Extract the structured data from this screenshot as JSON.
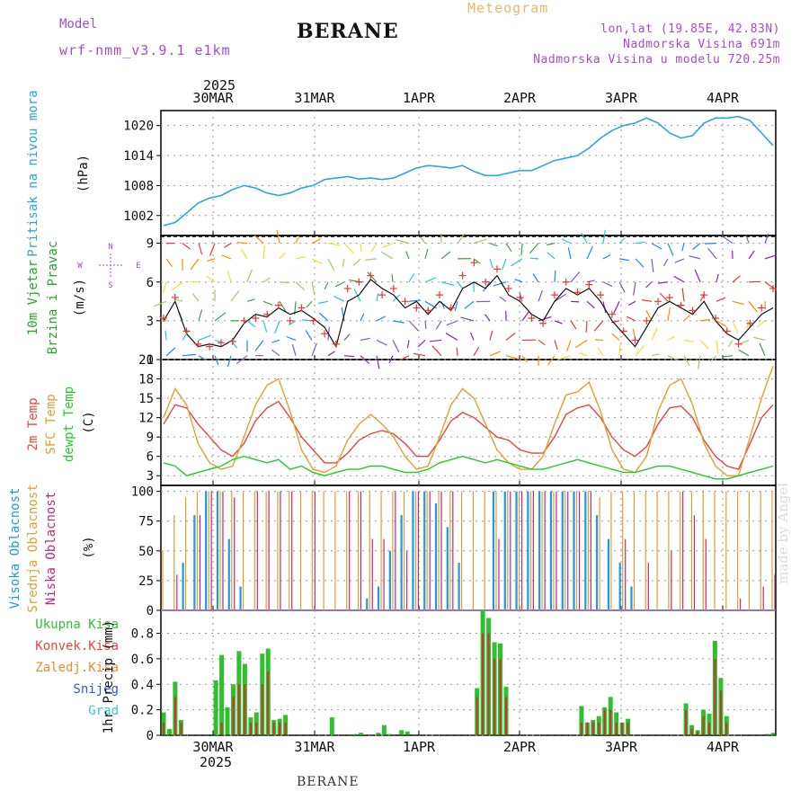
{
  "header": {
    "model_label": "Model",
    "model_value": "wrf-nmm_v3.9.1 e1km",
    "station": "BERANE",
    "meteogram": "Meteogram",
    "lonlat": "lon,lat (19.85E, 42.83N)",
    "altitude": "Nadmorska Visina 691m",
    "model_altitude": "Nadmorska Visina u modelu 720.25m",
    "footer_station": "BERANE",
    "credit": "made by Angel"
  },
  "time_axis": {
    "year": "2025",
    "labels": [
      "30MAR",
      "31MAR",
      "1APR",
      "2APR",
      "3APR",
      "4APR"
    ]
  },
  "colors": {
    "pressure": "#2aa6e0",
    "temp_2m": "#e8453c",
    "temp_sfc": "#e0a030",
    "dewpoint": "#22cc22",
    "cloud_high": "#1e9bd8",
    "cloud_mid": "#e0a030",
    "cloud_low": "#c0287a",
    "precip": "#2fbf2f",
    "precip_conv": "#c0392b",
    "wind_label": "#22aa22",
    "compass": "#a64bd1"
  },
  "chart_data": [
    {
      "type": "line",
      "ylabel_main": "Pritisak na nivou mora",
      "ylabel_unit": "(hPa)",
      "ylim": [
        998,
        1023
      ],
      "ticks": [
        1002,
        1008,
        1014,
        1020
      ],
      "series": [
        {
          "values": [
            1000.0,
            1000.6,
            1002.5,
            1004.5,
            1005.5,
            1006.0,
            1007.2,
            1008.0,
            1007.5,
            1006.5,
            1006.0,
            1006.5,
            1007.5,
            1008.0,
            1009.2,
            1009.5,
            1009.8,
            1009.3,
            1009.5,
            1009.2,
            1009.5,
            1010.5,
            1011.5,
            1012.0,
            1011.8,
            1011.5,
            1012.0,
            1010.8,
            1010.0,
            1010.0,
            1010.5,
            1011.0,
            1011.0,
            1012.0,
            1013.0,
            1013.5,
            1014.0,
            1015.5,
            1017.5,
            1019.0,
            1020.0,
            1020.5,
            1021.5,
            1020.5,
            1018.5,
            1017.5,
            1018.0,
            1020.5,
            1021.5,
            1021.5,
            1021.8,
            1021.0,
            1018.5,
            1016.0
          ]
        }
      ]
    },
    {
      "type": "line",
      "ylabel_main": "10m Vjetar Brzina i Pravac",
      "ylabel_unit": "(m/s)",
      "compass": [
        "N",
        "W",
        "E",
        "S"
      ],
      "ylim": [
        0,
        9.6
      ],
      "ticks": [
        0,
        3,
        6,
        9
      ],
      "series": [
        {
          "values": [
            3.0,
            4.5,
            2.0,
            1.0,
            1.2,
            1.0,
            1.5,
            2.8,
            3.5,
            3.3,
            4.0,
            3.5,
            3.8,
            3.2,
            2.5,
            1.0,
            4.5,
            5.0,
            6.2,
            5.5,
            5.0,
            4.0,
            4.5,
            3.5,
            4.5,
            3.8,
            5.5,
            6.0,
            5.5,
            6.5,
            5.0,
            4.5,
            3.5,
            3.0,
            4.5,
            5.5,
            5.0,
            5.5,
            4.5,
            3.0,
            2.0,
            1.0,
            2.5,
            4.0,
            4.5,
            4.0,
            3.5,
            4.5,
            3.0,
            2.0,
            1.5,
            2.5,
            3.5,
            4.0
          ]
        },
        {
          "values": [
            3.2,
            4.8,
            2.2,
            1.2,
            1.0,
            1.3,
            1.4,
            3.0,
            3.2,
            3.5,
            4.2,
            3.0,
            4.0,
            3.0,
            2.0,
            1.2,
            5.5,
            6.0,
            6.5,
            5.0,
            5.5,
            4.5,
            4.0,
            3.8,
            5.0,
            4.0,
            6.5,
            7.5,
            6.0,
            7.0,
            5.5,
            4.8,
            3.2,
            2.8,
            5.0,
            6.0,
            5.2,
            5.8,
            5.0,
            3.5,
            2.2,
            1.5,
            3.0,
            4.5,
            4.8,
            4.2,
            3.8,
            5.0,
            3.2,
            2.2,
            1.2,
            2.8,
            4.0,
            5.5
          ]
        }
      ]
    },
    {
      "type": "line",
      "ylabel_lines": [
        "2m Temp",
        "SFC Temp",
        "dewpt Temp"
      ],
      "ylabel_unit": "(C)",
      "ylim": [
        1.5,
        21
      ],
      "ticks": [
        3,
        6,
        9,
        12,
        15,
        18,
        21
      ],
      "series": [
        {
          "values": [
            11.0,
            14.0,
            13.5,
            11.0,
            9.0,
            7.0,
            6.0,
            8.0,
            11.5,
            13.5,
            14.5,
            12.0,
            9.0,
            7.0,
            5.0,
            5.0,
            6.5,
            8.5,
            9.5,
            10.0,
            9.5,
            8.0,
            6.0,
            6.0,
            8.5,
            11.5,
            12.8,
            12.0,
            10.5,
            9.0,
            8.5,
            7.0,
            6.5,
            6.5,
            9.0,
            12.5,
            13.5,
            14.0,
            12.0,
            9.0,
            7.0,
            6.0,
            7.5,
            11.0,
            13.5,
            13.8,
            12.0,
            8.5,
            6.0,
            4.5,
            4.0,
            8.0,
            12.0,
            14.0
          ]
        },
        {
          "values": [
            12.0,
            16.5,
            14.0,
            8.0,
            5.0,
            4.0,
            4.5,
            9.0,
            14.0,
            17.0,
            18.0,
            13.0,
            7.0,
            4.0,
            3.5,
            4.5,
            8.5,
            11.0,
            12.5,
            11.0,
            9.0,
            6.0,
            4.0,
            4.5,
            9.0,
            14.0,
            16.5,
            15.0,
            11.0,
            7.0,
            5.0,
            4.0,
            4.0,
            6.0,
            11.0,
            15.5,
            16.0,
            17.5,
            13.0,
            7.0,
            4.0,
            3.5,
            6.0,
            13.0,
            17.0,
            18.0,
            14.0,
            8.0,
            4.5,
            3.0,
            3.0,
            9.0,
            15.0,
            20.0
          ]
        },
        {
          "values": [
            5.0,
            4.5,
            3.0,
            3.5,
            4.0,
            4.5,
            5.5,
            6.0,
            5.5,
            5.0,
            5.5,
            4.0,
            4.5,
            3.5,
            3.0,
            3.5,
            4.0,
            4.0,
            4.5,
            4.5,
            4.0,
            3.5,
            3.5,
            4.0,
            5.0,
            5.5,
            6.0,
            5.5,
            5.0,
            5.5,
            5.0,
            4.5,
            4.0,
            4.0,
            4.5,
            5.0,
            5.5,
            5.0,
            4.5,
            4.0,
            3.5,
            3.5,
            4.0,
            4.5,
            4.5,
            4.0,
            3.5,
            3.0,
            2.5,
            2.5,
            3.0,
            3.5,
            4.0,
            4.5
          ]
        }
      ]
    },
    {
      "type": "bar",
      "ylabel_lines": [
        "Visoka Oblacnost",
        "Srednja Oblacnost",
        "Niska Oblacnost"
      ],
      "ylabel_unit": "(%)",
      "ylim": [
        0,
        105
      ],
      "ticks": [
        0,
        25,
        50,
        75,
        100
      ],
      "series": [
        {
          "values": [
            0,
            0,
            40,
            80,
            100,
            100,
            60,
            20,
            0,
            0,
            0,
            0,
            0,
            0,
            0,
            0,
            0,
            0,
            10,
            20,
            50,
            80,
            100,
            100,
            90,
            70,
            40,
            0,
            0,
            100,
            100,
            100,
            100,
            100,
            100,
            100,
            100,
            100,
            80,
            60,
            40,
            20,
            0,
            0,
            0,
            0,
            0,
            0,
            0,
            0,
            0,
            0,
            0,
            0
          ]
        },
        {
          "values": [
            50,
            80,
            95,
            100,
            100,
            100,
            100,
            100,
            100,
            100,
            100,
            100,
            100,
            100,
            100,
            100,
            100,
            100,
            100,
            100,
            100,
            100,
            100,
            100,
            100,
            100,
            100,
            100,
            100,
            100,
            100,
            100,
            100,
            100,
            100,
            100,
            100,
            100,
            95,
            100,
            100,
            100,
            100,
            100,
            100,
            100,
            100,
            100,
            100,
            100,
            100,
            100,
            100,
            100
          ]
        },
        {
          "values": [
            0,
            30,
            0,
            80,
            100,
            100,
            95,
            0,
            100,
            100,
            100,
            100,
            0,
            100,
            0,
            0,
            100,
            100,
            60,
            60,
            100,
            50,
            100,
            100,
            100,
            100,
            0,
            0,
            0,
            60,
            100,
            100,
            100,
            100,
            100,
            100,
            100,
            100,
            0,
            0,
            60,
            0,
            40,
            0,
            50,
            100,
            80,
            60,
            0,
            0,
            10,
            0,
            20,
            30
          ]
        }
      ]
    },
    {
      "type": "bar",
      "ylabel_lines": [
        "Ukupna Kisa",
        "Konvek.Kisa",
        "Zaledj.Kisa",
        "Snijeg",
        "Grad"
      ],
      "ylabel_unit": "1hr Precip (mm)",
      "ylim": [
        0,
        0.98
      ],
      "ticks": [
        0,
        0.2,
        0.4,
        0.6,
        0.8
      ],
      "series": [
        {
          "values": [
            0.18,
            0.05,
            0.42,
            0.12,
            0,
            0,
            0,
            0,
            0,
            0.43,
            0.63,
            0.22,
            0.4,
            0.66,
            0.56,
            0.14,
            0.18,
            0.64,
            0.68,
            0.12,
            0.13,
            0.16,
            0,
            0,
            0,
            0,
            0,
            0,
            0,
            0.14,
            0,
            0,
            0,
            0.01,
            0.02,
            0,
            0,
            0.02,
            0.08,
            0.01,
            0,
            0.04,
            0.03,
            0,
            0,
            0,
            0,
            0,
            0,
            0,
            0,
            0,
            0,
            0,
            0.37,
            0.98,
            0.92,
            0.73,
            0.72,
            0.38,
            0,
            0,
            0,
            0,
            0,
            0,
            0,
            0,
            0,
            0,
            0,
            0,
            0.23,
            0.1,
            0.12,
            0.15,
            0.22,
            0.3,
            0.18,
            0.1,
            0.13,
            0,
            0,
            0,
            0,
            0,
            0,
            0,
            0,
            0,
            0.25,
            0.08,
            0.04,
            0.2,
            0.17,
            0.74,
            0.45,
            0.15,
            0,
            0,
            0,
            0,
            0,
            0,
            0.01,
            0.02
          ]
        },
        {
          "values": [
            0.1,
            0,
            0.3,
            0.1,
            0,
            0,
            0,
            0,
            0,
            0,
            0.1,
            0,
            0.3,
            0.4,
            0.4,
            0.1,
            0.1,
            0.4,
            0.5,
            0.1,
            0.1,
            0.1,
            0,
            0,
            0,
            0,
            0,
            0,
            0,
            0,
            0,
            0,
            0,
            0,
            0,
            0,
            0,
            0,
            0,
            0,
            0,
            0,
            0,
            0,
            0,
            0,
            0,
            0,
            0,
            0,
            0,
            0,
            0,
            0,
            0.3,
            0.8,
            0.8,
            0.6,
            0.6,
            0.3,
            0,
            0,
            0,
            0,
            0,
            0,
            0,
            0,
            0,
            0,
            0,
            0,
            0.1,
            0.1,
            0.1,
            0.1,
            0.2,
            0.2,
            0.1,
            0.1,
            0.1,
            0,
            0,
            0,
            0,
            0,
            0,
            0,
            0,
            0,
            0.2,
            0.05,
            0.03,
            0.15,
            0.1,
            0.6,
            0.35,
            0.1,
            0,
            0,
            0,
            0,
            0,
            0,
            0,
            0
          ]
        }
      ]
    }
  ]
}
